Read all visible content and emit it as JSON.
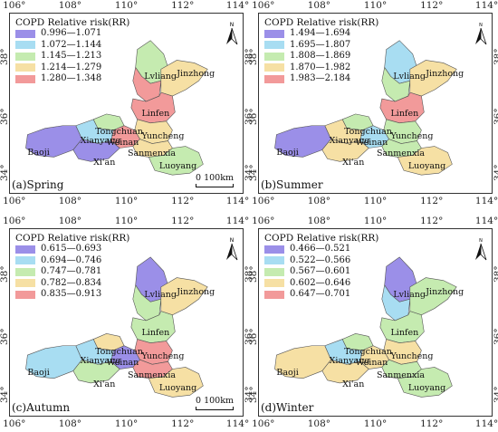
{
  "legend_title": "COPD Relative risk(RR)",
  "x_ticks": [
    "106°",
    "108°",
    "110°",
    "112°",
    "114°"
  ],
  "y_ticks": [
    "38°",
    "36°",
    "34°"
  ],
  "north_label": "N",
  "scale": {
    "zero": "0",
    "distance": "100",
    "unit": "km"
  },
  "cities": [
    "Lvliang",
    "Jinzhong",
    "Linfen",
    "Tongchuan",
    "Xianyang",
    "Weinan",
    "Yuncheng",
    "Baoji",
    "Sanmenxia",
    "Xi'an",
    "Luoyang"
  ],
  "colors": [
    "#9b8fe8",
    "#a8ddf2",
    "#c5ebb0",
    "#f6e0a4",
    "#f29a9a"
  ],
  "panels": [
    {
      "label": "(a)Spring",
      "legend": [
        "0.996—1.071",
        "1.072—1.144",
        "1.145—1.213",
        "1.214—1.279",
        "1.280—1.348"
      ]
    },
    {
      "label": "(b)Summer",
      "legend": [
        "1.494—1.694",
        "1.695—1.807",
        "1.808—1.869",
        "1.870—1.982",
        "1.983—2.184"
      ]
    },
    {
      "label": "(c)Autumn",
      "legend": [
        "0.615—0.693",
        "0.694—0.746",
        "0.747—0.781",
        "0.782—0.834",
        "0.835—0.913"
      ]
    },
    {
      "label": "(d)Winter",
      "legend": [
        "0.466—0.521",
        "0.522—0.566",
        "0.567—0.601",
        "0.602—0.646",
        "0.647—0.701"
      ]
    }
  ]
}
